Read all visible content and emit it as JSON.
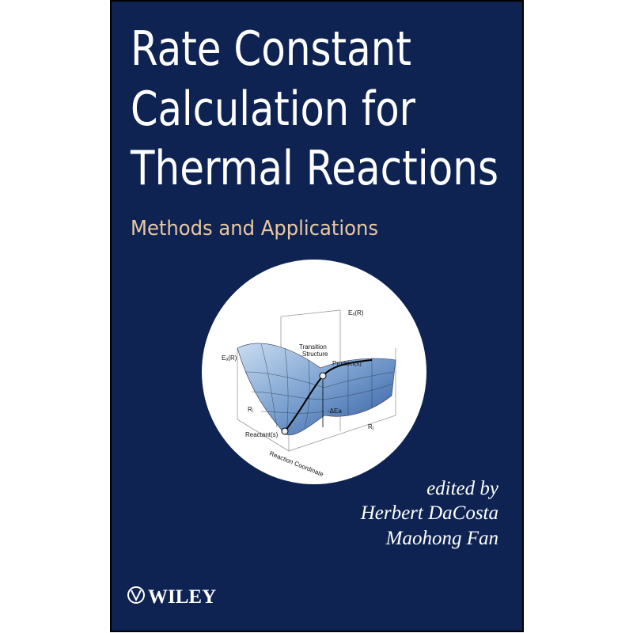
{
  "cover": {
    "title_lines": [
      "Rate Constant",
      "Calculation for",
      "Thermal Reactions"
    ],
    "subtitle": "Methods and Applications",
    "figure": {
      "axis_top": "Eₐ(R)",
      "axis_left": "Eₐ(R)",
      "transition": [
        "Transition",
        "Structure"
      ],
      "product": "Product(s)",
      "reactant": "Reactant(s)",
      "barrier": "-ΔEa",
      "coord_i": "Rᵢ",
      "coord_j": "Rⱼ",
      "reaction_coordinate": "Reaction Coordinate"
    },
    "editors_intro": "edited by",
    "editors": [
      "Herbert DaCosta",
      "Maohong Fan"
    ],
    "publisher": "WILEY"
  }
}
